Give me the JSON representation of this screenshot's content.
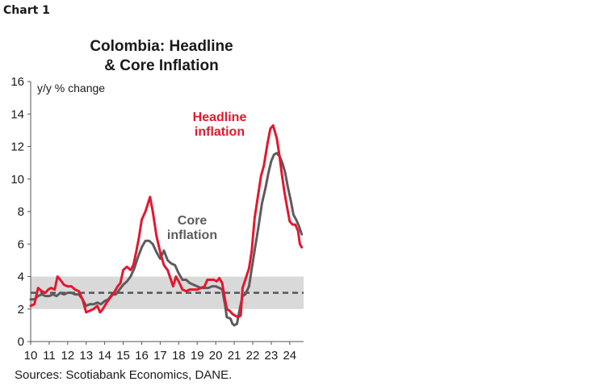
{
  "chart_label": "Chart 1",
  "source": "Sources: Scotiabank Economics, DANE.",
  "colors": {
    "headline": "#e3172f",
    "core": "#5c5c5c",
    "band": "#d9d9d9",
    "target": "#555555"
  },
  "chart_data": {
    "type": "line",
    "title_lines": [
      "Colombia: Headline",
      "& Core Inflation"
    ],
    "ylabel": "y/y % change",
    "xlabel": "",
    "xlim": [
      2010,
      2024.75
    ],
    "ylim": [
      0,
      16
    ],
    "y_ticks": [
      0,
      2,
      4,
      6,
      8,
      10,
      12,
      14,
      16
    ],
    "x_ticks": [
      "10",
      "11",
      "12",
      "13",
      "14",
      "15",
      "16",
      "17",
      "18",
      "19",
      "20",
      "21",
      "22",
      "23",
      "24"
    ],
    "grid": false,
    "target_band": [
      2,
      4
    ],
    "target_line": 3,
    "annotations": [
      {
        "text_lines": [
          "Headline",
          "inflation"
        ],
        "series": "Headline inflation"
      },
      {
        "text_lines": [
          "Core",
          "inflation"
        ],
        "series": "Core inflation"
      }
    ],
    "series": [
      {
        "name": "Headline inflation",
        "points": [
          [
            2010.0,
            2.2
          ],
          [
            2010.2,
            2.3
          ],
          [
            2010.4,
            3.3
          ],
          [
            2010.6,
            3.1
          ],
          [
            2010.8,
            3.0
          ],
          [
            2010.95,
            3.2
          ],
          [
            2011.1,
            3.3
          ],
          [
            2011.3,
            3.2
          ],
          [
            2011.45,
            4.0
          ],
          [
            2011.6,
            3.8
          ],
          [
            2011.8,
            3.5
          ],
          [
            2012.0,
            3.4
          ],
          [
            2012.2,
            3.4
          ],
          [
            2012.4,
            3.2
          ],
          [
            2012.6,
            3.1
          ],
          [
            2012.8,
            2.6
          ],
          [
            2013.0,
            1.8
          ],
          [
            2013.2,
            1.9
          ],
          [
            2013.4,
            2.0
          ],
          [
            2013.6,
            2.2
          ],
          [
            2013.75,
            1.8
          ],
          [
            2013.9,
            2.0
          ],
          [
            2014.1,
            2.4
          ],
          [
            2014.3,
            2.7
          ],
          [
            2014.5,
            3.0
          ],
          [
            2014.7,
            3.4
          ],
          [
            2014.85,
            3.6
          ],
          [
            2015.0,
            4.4
          ],
          [
            2015.2,
            4.6
          ],
          [
            2015.4,
            4.4
          ],
          [
            2015.55,
            4.7
          ],
          [
            2015.7,
            5.5
          ],
          [
            2015.85,
            6.4
          ],
          [
            2016.0,
            7.5
          ],
          [
            2016.2,
            8.0
          ],
          [
            2016.45,
            8.9
          ],
          [
            2016.6,
            8.0
          ],
          [
            2016.8,
            6.5
          ],
          [
            2017.0,
            5.5
          ],
          [
            2017.2,
            4.7
          ],
          [
            2017.4,
            4.4
          ],
          [
            2017.55,
            3.9
          ],
          [
            2017.7,
            3.4
          ],
          [
            2017.85,
            4.0
          ],
          [
            2018.0,
            3.7
          ],
          [
            2018.2,
            3.2
          ],
          [
            2018.4,
            3.1
          ],
          [
            2018.6,
            3.2
          ],
          [
            2018.8,
            3.2
          ],
          [
            2019.0,
            3.2
          ],
          [
            2019.2,
            3.3
          ],
          [
            2019.4,
            3.4
          ],
          [
            2019.55,
            3.8
          ],
          [
            2019.7,
            3.8
          ],
          [
            2019.9,
            3.8
          ],
          [
            2020.05,
            3.7
          ],
          [
            2020.2,
            3.9
          ],
          [
            2020.35,
            3.6
          ],
          [
            2020.45,
            2.9
          ],
          [
            2020.6,
            2.0
          ],
          [
            2020.75,
            1.9
          ],
          [
            2020.9,
            1.7
          ],
          [
            2021.05,
            1.6
          ],
          [
            2021.2,
            1.5
          ],
          [
            2021.35,
            1.6
          ],
          [
            2021.45,
            3.3
          ],
          [
            2021.6,
            3.8
          ],
          [
            2021.8,
            4.5
          ],
          [
            2021.95,
            5.6
          ],
          [
            2022.1,
            7.6
          ],
          [
            2022.3,
            9.1
          ],
          [
            2022.45,
            10.2
          ],
          [
            2022.6,
            10.8
          ],
          [
            2022.8,
            12.2
          ],
          [
            2022.95,
            13.1
          ],
          [
            2023.1,
            13.3
          ],
          [
            2023.3,
            12.5
          ],
          [
            2023.45,
            11.4
          ],
          [
            2023.55,
            10.5
          ],
          [
            2023.7,
            9.3
          ],
          [
            2023.85,
            8.3
          ],
          [
            2024.0,
            7.4
          ],
          [
            2024.15,
            7.2
          ],
          [
            2024.3,
            7.2
          ],
          [
            2024.45,
            6.8
          ],
          [
            2024.55,
            6.0
          ],
          [
            2024.65,
            5.8
          ]
        ]
      },
      {
        "name": "Core inflation",
        "points": [
          [
            2010.0,
            2.6
          ],
          [
            2010.2,
            2.6
          ],
          [
            2010.4,
            2.8
          ],
          [
            2010.6,
            2.9
          ],
          [
            2010.8,
            2.8
          ],
          [
            2011.0,
            2.8
          ],
          [
            2011.2,
            2.9
          ],
          [
            2011.4,
            2.8
          ],
          [
            2011.6,
            3.0
          ],
          [
            2011.8,
            2.9
          ],
          [
            2012.0,
            3.0
          ],
          [
            2012.2,
            3.0
          ],
          [
            2012.4,
            2.9
          ],
          [
            2012.6,
            2.9
          ],
          [
            2012.8,
            2.6
          ],
          [
            2013.0,
            2.2
          ],
          [
            2013.2,
            2.3
          ],
          [
            2013.4,
            2.3
          ],
          [
            2013.6,
            2.4
          ],
          [
            2013.8,
            2.3
          ],
          [
            2014.0,
            2.5
          ],
          [
            2014.2,
            2.6
          ],
          [
            2014.4,
            2.9
          ],
          [
            2014.6,
            2.9
          ],
          [
            2014.8,
            3.2
          ],
          [
            2015.0,
            3.5
          ],
          [
            2015.2,
            3.7
          ],
          [
            2015.4,
            4.0
          ],
          [
            2015.6,
            4.5
          ],
          [
            2015.8,
            5.2
          ],
          [
            2016.0,
            5.8
          ],
          [
            2016.2,
            6.2
          ],
          [
            2016.4,
            6.2
          ],
          [
            2016.6,
            6.0
          ],
          [
            2016.8,
            5.5
          ],
          [
            2017.0,
            5.1
          ],
          [
            2017.2,
            5.6
          ],
          [
            2017.4,
            5.0
          ],
          [
            2017.6,
            4.8
          ],
          [
            2017.8,
            4.7
          ],
          [
            2018.0,
            4.2
          ],
          [
            2018.2,
            3.8
          ],
          [
            2018.4,
            3.8
          ],
          [
            2018.6,
            3.6
          ],
          [
            2018.8,
            3.5
          ],
          [
            2019.0,
            3.4
          ],
          [
            2019.2,
            3.3
          ],
          [
            2019.4,
            3.3
          ],
          [
            2019.6,
            3.3
          ],
          [
            2019.8,
            3.4
          ],
          [
            2020.0,
            3.4
          ],
          [
            2020.2,
            3.3
          ],
          [
            2020.35,
            3.2
          ],
          [
            2020.5,
            2.3
          ],
          [
            2020.6,
            1.5
          ],
          [
            2020.8,
            1.4
          ],
          [
            2020.9,
            1.1
          ],
          [
            2021.0,
            1.0
          ],
          [
            2021.15,
            1.1
          ],
          [
            2021.3,
            2.0
          ],
          [
            2021.45,
            2.8
          ],
          [
            2021.6,
            2.9
          ],
          [
            2021.8,
            3.4
          ],
          [
            2021.95,
            4.5
          ],
          [
            2022.1,
            5.6
          ],
          [
            2022.3,
            7.0
          ],
          [
            2022.5,
            8.5
          ],
          [
            2022.7,
            9.5
          ],
          [
            2022.85,
            10.4
          ],
          [
            2023.0,
            11.1
          ],
          [
            2023.15,
            11.5
          ],
          [
            2023.3,
            11.6
          ],
          [
            2023.45,
            11.4
          ],
          [
            2023.6,
            11.0
          ],
          [
            2023.75,
            10.4
          ],
          [
            2023.9,
            9.5
          ],
          [
            2024.05,
            8.7
          ],
          [
            2024.2,
            7.8
          ],
          [
            2024.35,
            7.5
          ],
          [
            2024.5,
            7.1
          ],
          [
            2024.65,
            6.6
          ]
        ]
      }
    ]
  }
}
